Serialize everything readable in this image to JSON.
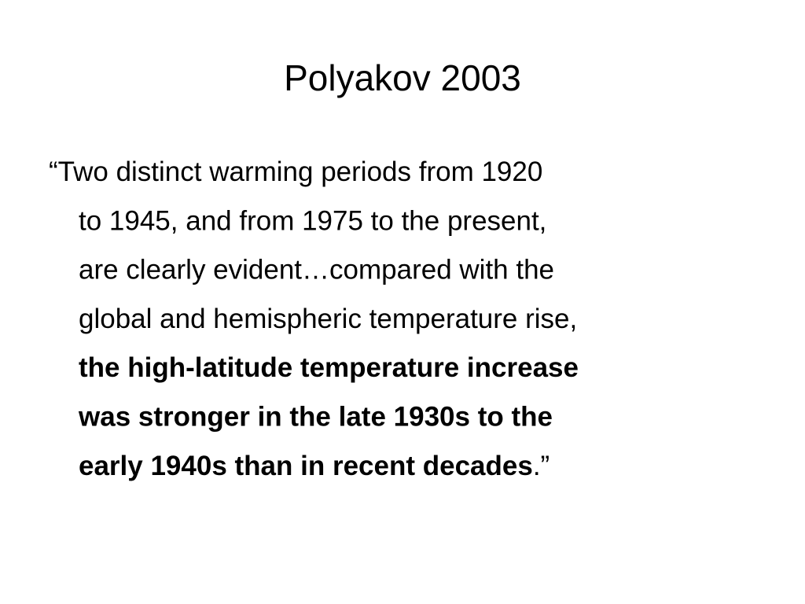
{
  "title": "Polyakov 2003",
  "body": {
    "lines": [
      [
        {
          "text": "“Two distinct warming periods from 1920",
          "bold": false
        }
      ],
      [
        {
          "text": "to 1945, and from 1975 to the present,",
          "bold": false
        }
      ],
      [
        {
          "text": "are clearly evident…compared with the",
          "bold": false
        }
      ],
      [
        {
          "text": "global and hemispheric temperature rise,",
          "bold": false
        }
      ],
      [
        {
          "text": "the high-latitude temperature increase",
          "bold": true
        }
      ],
      [
        {
          "text": "was stronger in the late 1930s to the",
          "bold": true
        }
      ],
      [
        {
          "text": "early 1940s than in recent decades",
          "bold": true
        },
        {
          "text": ".”",
          "bold": false
        }
      ]
    ]
  }
}
